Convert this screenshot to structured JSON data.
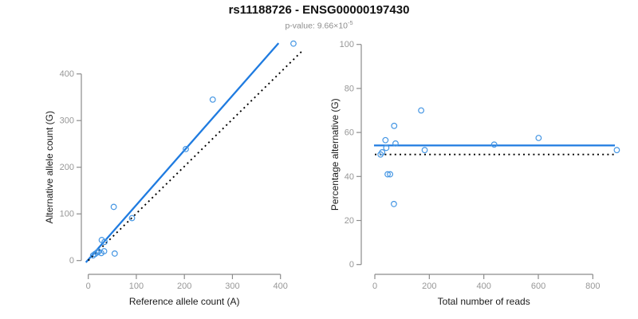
{
  "header": {
    "title": "rs11188726 - ENSG00000197430",
    "pvalue_label": "p-value: ",
    "pvalue_base": "9.66×10",
    "pvalue_exponent": "-5"
  },
  "colors": {
    "fit_line_blue": "#1f7be0",
    "point_blue": "#4596e3",
    "reference_line_black": "#000000",
    "axis_gray": "#8c8c8c",
    "tick_label_gray": "#979797",
    "axis_title_color": "#1a1a1a"
  },
  "chart_data": [
    {
      "type": "scatter",
      "name": "allele-counts-scatter",
      "xlabel": "Reference allele count (A)",
      "ylabel": "Alternative allele count (G)",
      "xticks": [
        0,
        100,
        200,
        300,
        400
      ],
      "yticks": [
        0,
        100,
        200,
        300,
        400
      ],
      "xlim": [
        0,
        450
      ],
      "ylim": [
        0,
        470
      ],
      "grid": false,
      "points": [
        [
          10,
          11
        ],
        [
          14,
          14
        ],
        [
          18,
          17
        ],
        [
          21,
          19
        ],
        [
          27,
          16
        ],
        [
          33,
          20
        ],
        [
          28,
          44
        ],
        [
          34,
          40
        ],
        [
          55,
          15
        ],
        [
          53,
          115
        ],
        [
          91,
          91
        ],
        [
          203,
          239
        ],
        [
          259,
          345
        ],
        [
          427,
          465
        ]
      ],
      "lines": [
        {
          "name": "fit-line",
          "style": "solid",
          "color_key": "fit_line_blue",
          "x1": -5,
          "y1": -4,
          "x2": 396,
          "y2": 466
        },
        {
          "name": "identity-line",
          "style": "dotted",
          "color_key": "reference_line_black",
          "x1": 0,
          "y1": 0,
          "x2": 445,
          "y2": 449
        }
      ]
    },
    {
      "type": "scatter",
      "name": "percentage-vs-reads-scatter",
      "xlabel": "Total number of reads",
      "ylabel": "Percentage alternative (G)",
      "xticks": [
        0,
        200,
        400,
        600,
        800
      ],
      "yticks": [
        0,
        20,
        40,
        60,
        80,
        100
      ],
      "xlim": [
        0,
        900
      ],
      "ylim": [
        0,
        100
      ],
      "grid": false,
      "points": [
        [
          21,
          50
        ],
        [
          27,
          51
        ],
        [
          39,
          56.5
        ],
        [
          42,
          53
        ],
        [
          47,
          41
        ],
        [
          56,
          41
        ],
        [
          70,
          27.5
        ],
        [
          71,
          63
        ],
        [
          76,
          55
        ],
        [
          170,
          70
        ],
        [
          183,
          52
        ],
        [
          438,
          54.5
        ],
        [
          601,
          57.5
        ],
        [
          888,
          52
        ]
      ],
      "lines": [
        {
          "name": "fit-line",
          "style": "solid",
          "color_key": "fit_line_blue",
          "x1": -3,
          "y1": 54.1,
          "x2": 881,
          "y2": 54.1
        },
        {
          "name": "reference-line-50pct",
          "style": "dotted",
          "color_key": "reference_line_black",
          "x1": 0,
          "y1": 50,
          "x2": 878,
          "y2": 50
        }
      ]
    }
  ]
}
